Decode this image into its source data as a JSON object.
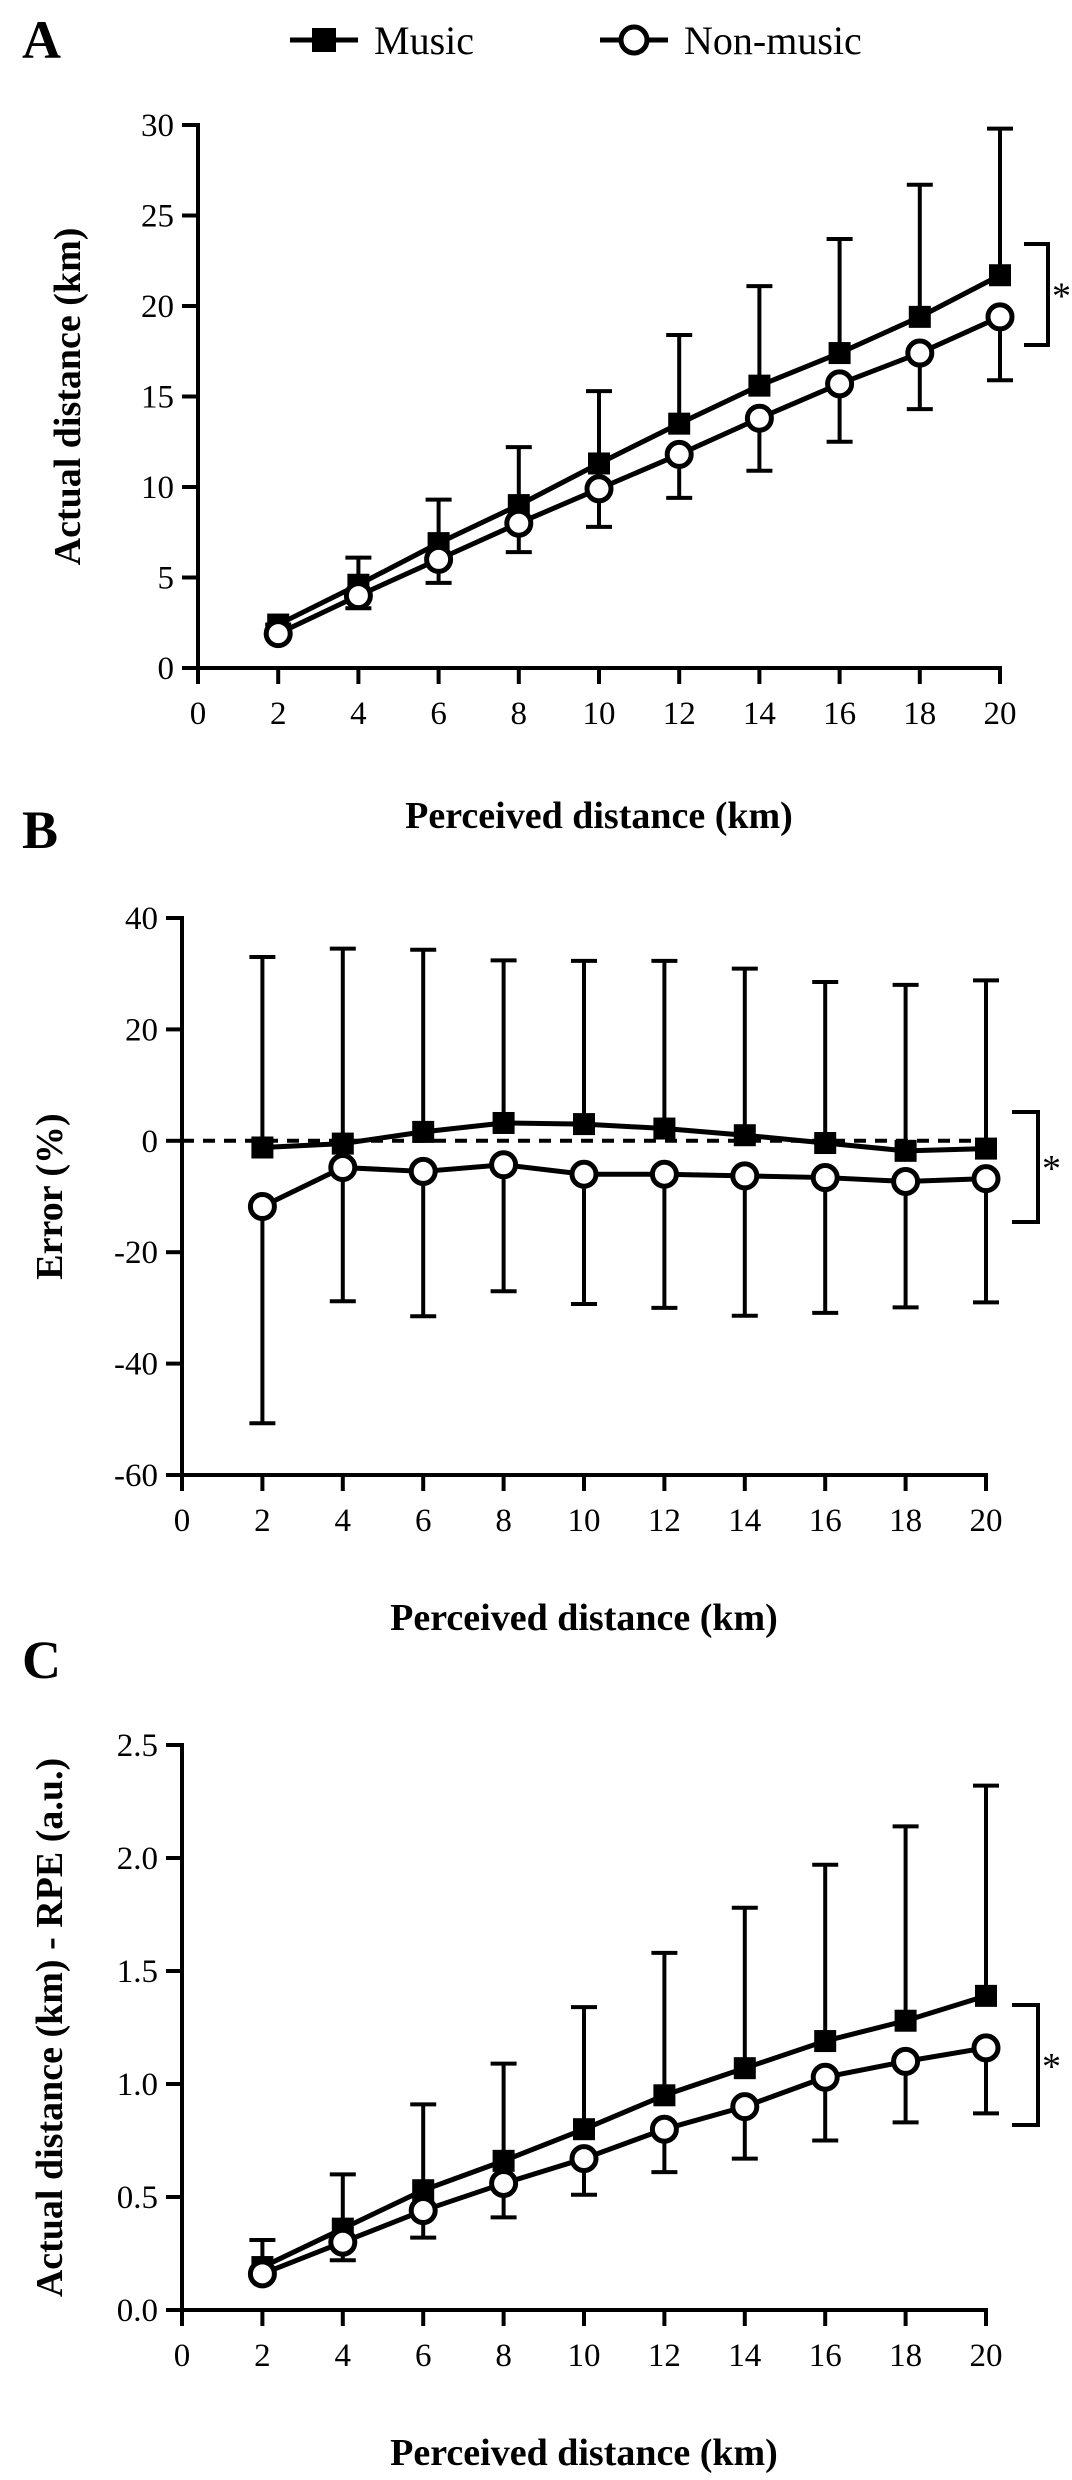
{
  "legend": [
    {
      "label": "Music",
      "marker": "filled-square"
    },
    {
      "label": "Non-music",
      "marker": "open-circle"
    }
  ],
  "chart_data": [
    {
      "panel": "A",
      "type": "line",
      "xlabel": "Perceived distance (km)",
      "ylabel": "Actual distance (km)",
      "xlim": [
        0,
        20
      ],
      "xticks": [
        0,
        2,
        4,
        6,
        8,
        10,
        12,
        14,
        16,
        18,
        20
      ],
      "ylim": [
        0,
        30
      ],
      "yticks": [
        0,
        5,
        10,
        15,
        20,
        25,
        30
      ],
      "ytick_labels": [
        "0",
        "5",
        "10",
        "15",
        "20",
        "25",
        "30"
      ],
      "reference_line": null,
      "significance": "*",
      "x": [
        2,
        4,
        6,
        8,
        10,
        12,
        14,
        16,
        18,
        20
      ],
      "series": [
        {
          "name": "Music",
          "marker": "filled-square",
          "values": [
            2.4,
            4.6,
            6.9,
            9.0,
            11.3,
            13.5,
            15.6,
            17.4,
            19.4,
            21.7
          ],
          "error_up": [
            2.4,
            6.1,
            9.3,
            12.2,
            15.3,
            18.4,
            21.1,
            23.7,
            26.7,
            29.8
          ],
          "error_down": null
        },
        {
          "name": "Non-music",
          "marker": "open-circle",
          "values": [
            1.9,
            4.0,
            6.0,
            8.0,
            9.9,
            11.8,
            13.8,
            15.7,
            17.4,
            19.4
          ],
          "error_up": null,
          "error_down": [
            1.9,
            3.3,
            4.7,
            6.4,
            7.8,
            9.4,
            10.9,
            12.5,
            14.3,
            15.9
          ]
        }
      ]
    },
    {
      "panel": "B",
      "type": "line",
      "xlabel": "Perceived distance (km)",
      "ylabel": "Error (%)",
      "xlim": [
        0,
        20
      ],
      "xticks": [
        0,
        2,
        4,
        6,
        8,
        10,
        12,
        14,
        16,
        18,
        20
      ],
      "ylim": [
        -60,
        40
      ],
      "yticks": [
        -60,
        -40,
        -20,
        0,
        20,
        40
      ],
      "ytick_labels": [
        "-60",
        "-40",
        "-20",
        "0",
        "20",
        "40"
      ],
      "reference_line": 0,
      "significance": "*",
      "x": [
        2,
        4,
        6,
        8,
        10,
        12,
        14,
        16,
        18,
        20
      ],
      "series": [
        {
          "name": "Music",
          "marker": "filled-square",
          "values": [
            -1.2,
            -0.5,
            1.6,
            3.2,
            3.0,
            2.2,
            1.0,
            -0.4,
            -1.8,
            -1.4
          ],
          "error_up": [
            33.0,
            34.5,
            34.3,
            32.4,
            32.3,
            32.3,
            30.9,
            28.5,
            28.0,
            28.8
          ],
          "error_down": null
        },
        {
          "name": "Non-music",
          "marker": "open-circle",
          "values": [
            -11.8,
            -4.8,
            -5.5,
            -4.3,
            -6.0,
            -6.0,
            -6.3,
            -6.6,
            -7.3,
            -6.8
          ],
          "error_up": null,
          "error_down": [
            -50.7,
            -28.8,
            -31.5,
            -27.0,
            -29.3,
            -30.0,
            -31.4,
            -30.9,
            -29.9,
            -29.0
          ]
        }
      ]
    },
    {
      "panel": "C",
      "type": "line",
      "xlabel": "Perceived distance (km)",
      "ylabel": "Actual distance (km) - RPE (a.u.)",
      "xlim": [
        0,
        20
      ],
      "xticks": [
        0,
        2,
        4,
        6,
        8,
        10,
        12,
        14,
        16,
        18,
        20
      ],
      "ylim": [
        0,
        2.5
      ],
      "yticks": [
        0,
        0.5,
        1.0,
        1.5,
        2.0,
        2.5
      ],
      "ytick_labels": [
        "0.0",
        "0.5",
        "1.0",
        "1.5",
        "2.0",
        "2.5"
      ],
      "reference_line": null,
      "significance": "*",
      "x": [
        2,
        4,
        6,
        8,
        10,
        12,
        14,
        16,
        18,
        20
      ],
      "series": [
        {
          "name": "Music",
          "marker": "filled-square",
          "values": [
            0.19,
            0.36,
            0.53,
            0.66,
            0.8,
            0.95,
            1.07,
            1.19,
            1.28,
            1.39
          ],
          "error_up": [
            0.31,
            0.6,
            0.91,
            1.09,
            1.34,
            1.58,
            1.78,
            1.97,
            2.14,
            2.32
          ],
          "error_down": null
        },
        {
          "name": "Non-music",
          "marker": "open-circle",
          "values": [
            0.16,
            0.3,
            0.44,
            0.56,
            0.67,
            0.8,
            0.9,
            1.03,
            1.1,
            1.16
          ],
          "error_up": null,
          "error_down": [
            0.16,
            0.22,
            0.32,
            0.41,
            0.51,
            0.61,
            0.67,
            0.75,
            0.83,
            0.87
          ]
        }
      ]
    }
  ]
}
